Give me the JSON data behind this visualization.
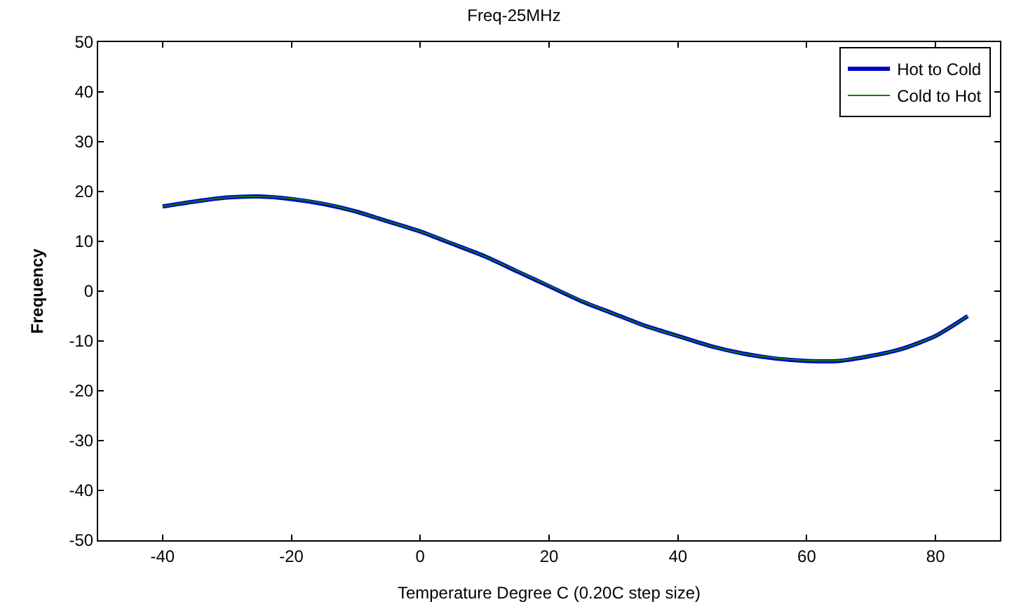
{
  "chart_data": {
    "type": "line",
    "title": "Freq-25MHz",
    "xlabel": "Temperature Degree C (0.20C step size)",
    "ylabel": "Frequency",
    "x": [
      -40,
      -35,
      -30,
      -25,
      -20,
      -15,
      -10,
      -5,
      0,
      5,
      10,
      15,
      20,
      25,
      30,
      35,
      40,
      45,
      50,
      55,
      60,
      65,
      70,
      75,
      80,
      85
    ],
    "series": [
      {
        "name": "Hot to Cold",
        "color": "#0000cc",
        "values": [
          17,
          18,
          18.8,
          19,
          18.5,
          17.5,
          16,
          14,
          12,
          9.5,
          7,
          4,
          1,
          -2,
          -4.5,
          -7,
          -9,
          -11,
          -12.5,
          -13.5,
          -14,
          -14,
          -13,
          -11.5,
          -9,
          -5
        ]
      },
      {
        "name": "Cold to Hot",
        "color": "#008000",
        "values": [
          17,
          18,
          18.8,
          19,
          18.6,
          17.6,
          16,
          14,
          12,
          9.6,
          7,
          4.1,
          1.1,
          -1.9,
          -4.5,
          -7,
          -9,
          -11,
          -12.5,
          -13.4,
          -13.9,
          -13.9,
          -13,
          -11.5,
          -9,
          -5
        ]
      }
    ],
    "xlim": [
      -50,
      90
    ],
    "xticks": [
      -40,
      -20,
      0,
      20,
      40,
      60,
      80
    ],
    "ylim": [
      -50,
      50
    ],
    "yticks": [
      -50,
      -40,
      -30,
      -20,
      -10,
      0,
      10,
      20,
      30,
      40,
      50
    ],
    "grid": false,
    "legend": "top right",
    "line_style": "solid",
    "marker": "none"
  }
}
